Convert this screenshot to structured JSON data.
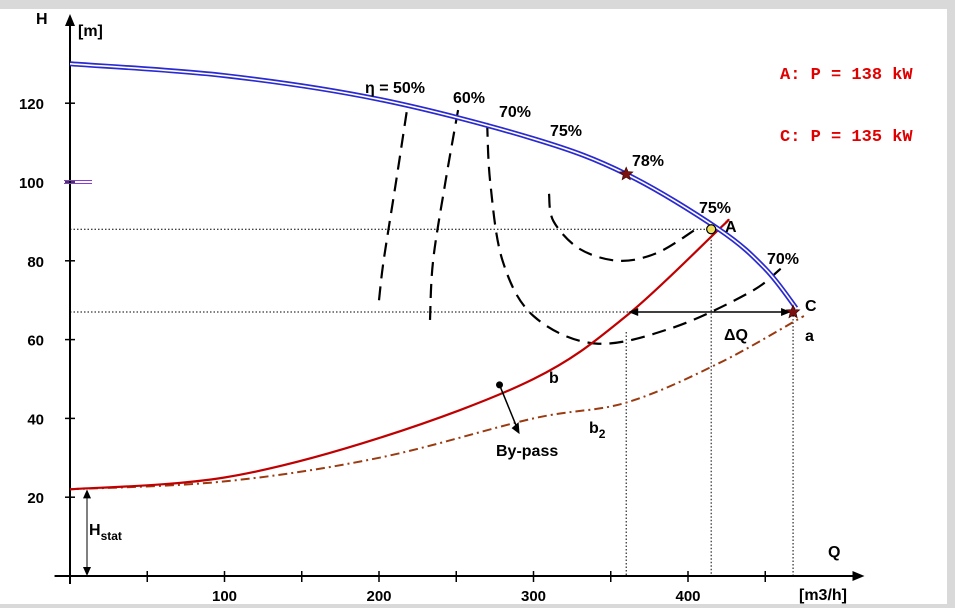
{
  "chart_data": {
    "type": "line",
    "ylabel_symbol": "H",
    "ylabel_unit": "[m]",
    "xlabel_symbol": "Q",
    "xlabel_unit": "[m3/h]",
    "xlim": [
      -10,
      500
    ],
    "ylim": [
      0,
      138
    ],
    "x_ticks": [
      100,
      200,
      300,
      400
    ],
    "x_minor_ticks": [
      50,
      150,
      250,
      350,
      450
    ],
    "y_ticks": [
      20,
      40,
      60,
      80,
      100,
      120
    ],
    "colors": {
      "pump_curve": "#2a2ad0",
      "system_curve": "#c00000",
      "bypass_curve": "#9a3a10",
      "efficiency_curves": "#000000",
      "power_text": "#e00000"
    },
    "series": [
      {
        "name": "a",
        "color": "#2a2ad0",
        "x": [
          0,
          100,
          200,
          300,
          360,
          420,
          450,
          470
        ],
        "y": [
          130,
          127,
          121,
          111,
          102,
          88,
          78,
          68
        ]
      },
      {
        "name": "b",
        "color": "#c00000",
        "x": [
          0,
          100,
          200,
          300,
          360,
          420,
          425
        ],
        "y": [
          22,
          25,
          35,
          50,
          66,
          88,
          90
        ]
      },
      {
        "name": "b2",
        "color": "#9a3a10",
        "x": [
          0,
          100,
          200,
          300,
          360,
          420,
          475
        ],
        "y": [
          22,
          24,
          30,
          40,
          44,
          54,
          66
        ]
      }
    ],
    "efficiency_lines": [
      {
        "label": "η = 50%",
        "x": [
          200,
          203,
          211,
          218
        ],
        "y": [
          70,
          80,
          100,
          118
        ]
      },
      {
        "label": "60%",
        "x": [
          233,
          235,
          243,
          252
        ],
        "y": [
          65,
          80,
          100,
          120
        ]
      },
      {
        "label": "70%",
        "x": [
          270,
          272,
          280,
          300,
          340,
          390,
          440,
          460
        ],
        "y": [
          115,
          100,
          80,
          66,
          59,
          63,
          72,
          78
        ]
      },
      {
        "label": "75%",
        "x": [
          310,
          313,
          330,
          355,
          380,
          405
        ],
        "y": [
          97,
          90,
          83,
          80,
          82,
          88
        ]
      }
    ],
    "points": [
      {
        "label": "78%",
        "x": 360,
        "y": 102,
        "marker": "star"
      },
      {
        "label": "A",
        "x": 415,
        "y": 88,
        "marker": "circle"
      },
      {
        "label": "C",
        "x": 468,
        "y": 67,
        "marker": "star"
      }
    ],
    "point_labels": {
      "eff_75_at_A": "75%",
      "eff_70_at_C": "70%"
    },
    "reference_lines": {
      "h_at_A": 88,
      "h_at_C": 67,
      "q_on_b_at_C": 360,
      "q_at_A": 415,
      "q_at_C": 468
    },
    "annotations": {
      "delta_q": "ΔQ",
      "bypass": "By-pass",
      "h_stat_main": "H",
      "h_stat_sub": "stat",
      "curve_a": "a",
      "curve_b": "b",
      "curve_b2_main": "b",
      "curve_b2_sub": "2",
      "power_A": "A: P = 138 kW",
      "power_C": "C: P = 135 kW"
    }
  }
}
